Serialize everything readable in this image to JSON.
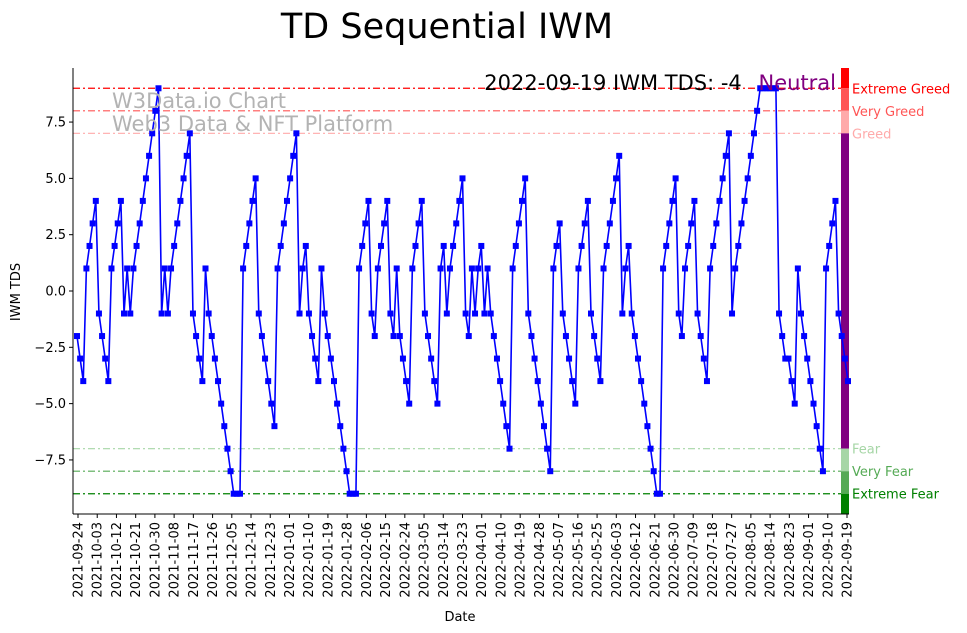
{
  "chart_data": {
    "type": "line",
    "title": "TD Sequential IWM",
    "xlabel": "Date",
    "ylabel": "IWM TDS",
    "ylim": [
      -9.9,
      9.9
    ],
    "yticks": [
      -7.5,
      -5.0,
      -2.5,
      0.0,
      2.5,
      5.0,
      7.5
    ],
    "ytick_labels": [
      "−7.5",
      "−5.0",
      "−2.5",
      "0.0",
      "2.5",
      "5.0",
      "7.5"
    ],
    "x_start": "2021-09-24",
    "x_end": "2022-09-19",
    "xticks": [
      "2021-09-24",
      "2021-10-03",
      "2021-10-12",
      "2021-10-21",
      "2021-10-30",
      "2021-11-08",
      "2021-11-17",
      "2021-11-26",
      "2021-12-05",
      "2021-12-14",
      "2021-12-23",
      "2022-01-01",
      "2022-01-10",
      "2022-01-19",
      "2022-01-28",
      "2022-02-06",
      "2022-02-15",
      "2022-02-24",
      "2022-03-05",
      "2022-03-14",
      "2022-03-23",
      "2022-04-01",
      "2022-04-10",
      "2022-04-19",
      "2022-04-28",
      "2022-05-07",
      "2022-05-16",
      "2022-05-25",
      "2022-06-03",
      "2022-06-12",
      "2022-06-21",
      "2022-06-30",
      "2022-07-09",
      "2022-07-18",
      "2022-07-27",
      "2022-08-05",
      "2022-08-14",
      "2022-08-23",
      "2022-09-01",
      "2022-09-10",
      "2022-09-19"
    ],
    "series": [
      {
        "name": "IWM TDS",
        "color": "#0000ff",
        "values": [
          -2,
          -3,
          -4,
          1,
          2,
          3,
          4,
          -1,
          -2,
          -3,
          -4,
          1,
          2,
          3,
          4,
          -1,
          1,
          -1,
          1,
          2,
          3,
          4,
          5,
          6,
          7,
          8,
          9,
          -1,
          1,
          -1,
          1,
          2,
          3,
          4,
          5,
          6,
          7,
          -1,
          -2,
          -3,
          -4,
          1,
          -1,
          -2,
          -3,
          -4,
          -5,
          -6,
          -7,
          -8,
          -9,
          -9,
          -9,
          1,
          2,
          3,
          4,
          5,
          -1,
          -2,
          -3,
          -4,
          -5,
          -6,
          1,
          2,
          3,
          4,
          5,
          6,
          7,
          -1,
          1,
          2,
          -1,
          -2,
          -3,
          -4,
          1,
          -1,
          -2,
          -3,
          -4,
          -5,
          -6,
          -7,
          -8,
          -9,
          -9,
          -9,
          1,
          2,
          3,
          4,
          -1,
          -2,
          1,
          2,
          3,
          4,
          -1,
          -2,
          1,
          -2,
          -3,
          -4,
          -5,
          1,
          2,
          3,
          4,
          -1,
          -2,
          -3,
          -4,
          -5,
          1,
          2,
          -1,
          1,
          2,
          3,
          4,
          5,
          -1,
          -2,
          1,
          -1,
          1,
          2,
          -1,
          1,
          -1,
          -2,
          -3,
          -4,
          -5,
          -6,
          -7,
          1,
          2,
          3,
          4,
          5,
          -1,
          -2,
          -3,
          -4,
          -5,
          -6,
          -7,
          -8,
          1,
          2,
          3,
          -1,
          -2,
          -3,
          -4,
          -5,
          1,
          2,
          3,
          4,
          -1,
          -2,
          -3,
          -4,
          1,
          2,
          3,
          4,
          5,
          6,
          -1,
          1,
          2,
          -1,
          -2,
          -3,
          -4,
          -5,
          -6,
          -7,
          -8,
          -9,
          -9,
          1,
          2,
          3,
          4,
          5,
          -1,
          -2,
          1,
          2,
          3,
          4,
          -1,
          -2,
          -3,
          -4,
          1,
          2,
          3,
          4,
          5,
          6,
          7,
          -1,
          1,
          2,
          3,
          4,
          5,
          6,
          7,
          8,
          9,
          9,
          9,
          9,
          9,
          9,
          -1,
          -2,
          -3,
          -3,
          -4,
          -5,
          1,
          -1,
          -2,
          -3,
          -4,
          -5,
          -6,
          -7,
          -8,
          1,
          2,
          3,
          4,
          -1,
          -2,
          -3,
          -4
        ]
      }
    ],
    "levels": [
      {
        "name": "Extreme Greed",
        "value": 9,
        "color": "#ff0000"
      },
      {
        "name": "Very Greed",
        "value": 8,
        "color": "#ff5555"
      },
      {
        "name": "Greed",
        "value": 7,
        "color": "#ffaaaa"
      },
      {
        "name": "Fear",
        "value": -7,
        "color": "#a6d6a6"
      },
      {
        "name": "Very Fear",
        "value": -8,
        "color": "#55aa55"
      },
      {
        "name": "Extreme Fear",
        "value": -9,
        "color": "#008000"
      }
    ],
    "side_band": [
      {
        "from": 9,
        "to": 9.9,
        "color": "#ff0000"
      },
      {
        "from": 8,
        "to": 9,
        "color": "#ff5555"
      },
      {
        "from": 7,
        "to": 8,
        "color": "#ffaaaa"
      },
      {
        "from": -7,
        "to": 7,
        "color": "#800080"
      },
      {
        "from": -8,
        "to": -7,
        "color": "#a6d6a6"
      },
      {
        "from": -9,
        "to": -8,
        "color": "#55aa55"
      },
      {
        "from": -9.9,
        "to": -9,
        "color": "#008000"
      }
    ],
    "status_prefix": "2022-09-19 IWM TDS: -4",
    "status_label": "Neutral",
    "status_color": "#800080",
    "watermark_lines": [
      "W3Data.io Chart",
      "Web3 Data & NFT Platform"
    ]
  }
}
